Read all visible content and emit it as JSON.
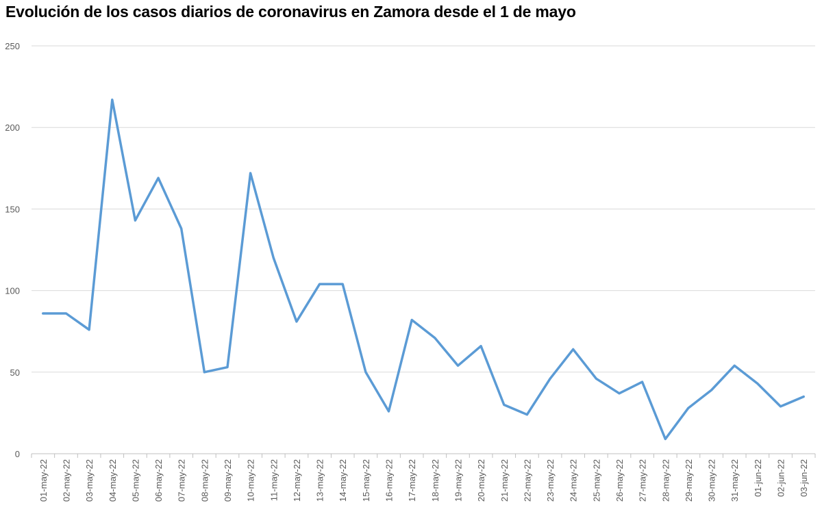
{
  "chart_data": {
    "type": "line",
    "title": "Evolución de los casos diarios de coronavirus en Zamora desde el 1 de mayo",
    "xlabel": "",
    "ylabel": "",
    "ylim": [
      0,
      250
    ],
    "yticks": [
      0,
      50,
      100,
      150,
      200,
      250
    ],
    "grid": true,
    "legend": "none",
    "categories": [
      "01-may-22",
      "02-may-22",
      "03-may-22",
      "04-may-22",
      "05-may-22",
      "06-may-22",
      "07-may-22",
      "08-may-22",
      "09-may-22",
      "10-may-22",
      "11-may-22",
      "12-may-22",
      "13-may-22",
      "14-may-22",
      "15-may-22",
      "16-may-22",
      "17-may-22",
      "18-may-22",
      "19-may-22",
      "20-may-22",
      "21-may-22",
      "22-may-22",
      "23-may-22",
      "24-may-22",
      "25-may-22",
      "26-may-22",
      "27-may-22",
      "28-may-22",
      "29-may-22",
      "30-may-22",
      "31-may-22",
      "01-jun-22",
      "02-jun-22",
      "03-jun-22"
    ],
    "series": [
      {
        "values": [
          86,
          86,
          76,
          217,
          143,
          169,
          138,
          50,
          53,
          172,
          120,
          81,
          104,
          104,
          50,
          26,
          82,
          71,
          54,
          66,
          30,
          24,
          46,
          64,
          46,
          37,
          44,
          9,
          28,
          39,
          54,
          43,
          29,
          35
        ],
        "color": "#5b9bd5"
      }
    ]
  }
}
